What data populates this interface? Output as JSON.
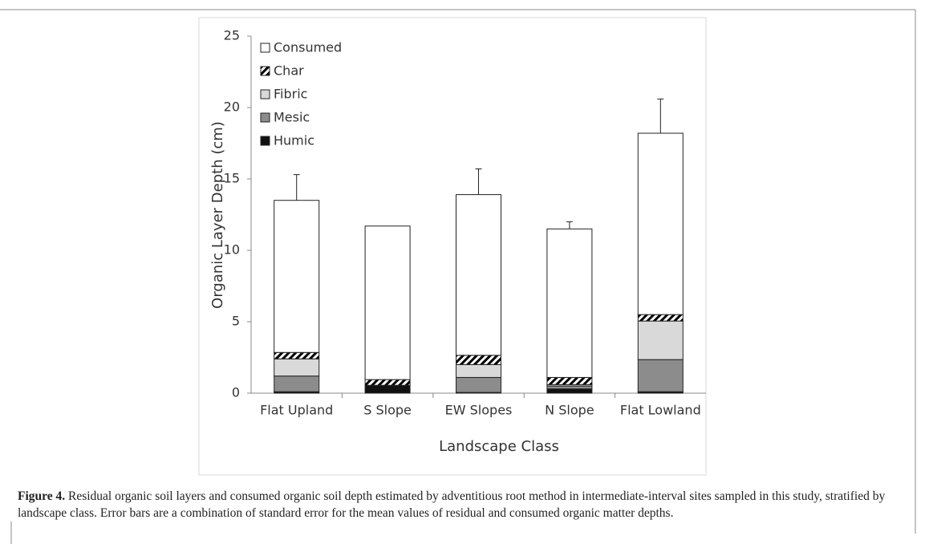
{
  "chart_data": {
    "type": "stacked-bar",
    "y_label": "Organic Layer Depth (cm)",
    "x_label": "Landscape Class",
    "categories": [
      "Flat Upland",
      "S Slope",
      "EW Slopes",
      "N Slope",
      "Flat Lowland"
    ],
    "series": [
      {
        "name": "Humic",
        "color": "#111111",
        "values": [
          0.1,
          0.55,
          0.05,
          0.3,
          0.1
        ]
      },
      {
        "name": "Mesic",
        "color": "#8c8c8c",
        "values": [
          1.1,
          0,
          1.05,
          0.2,
          2.25
        ]
      },
      {
        "name": "Fibric",
        "color": "#d9d9d9",
        "values": [
          1.2,
          0,
          0.9,
          0.1,
          2.7
        ]
      },
      {
        "name": "Char",
        "color": "#000000",
        "pattern": "diagonal-hatch",
        "values": [
          0.45,
          0.4,
          0.65,
          0.5,
          0.45
        ]
      },
      {
        "name": "Consumed",
        "color": "#ffffff",
        "values": [
          10.65,
          10.75,
          11.25,
          10.4,
          12.7
        ],
        "errors": [
          1.8,
          null,
          1.8,
          0.5,
          2.4
        ]
      }
    ],
    "ylim": [
      0,
      25
    ],
    "yticks": [
      0,
      5,
      10,
      15,
      20,
      25
    ],
    "grid": false,
    "legend": "upper-left"
  },
  "caption": {
    "label": "Figure 4.",
    "text": "Residual organic soil layers and consumed organic soil depth estimated by adventitious root method in intermediate-interval sites sampled in this study, stratified by landscape class. Error bars are a combination of standard error for the mean values of residual and consumed organic matter depths."
  }
}
